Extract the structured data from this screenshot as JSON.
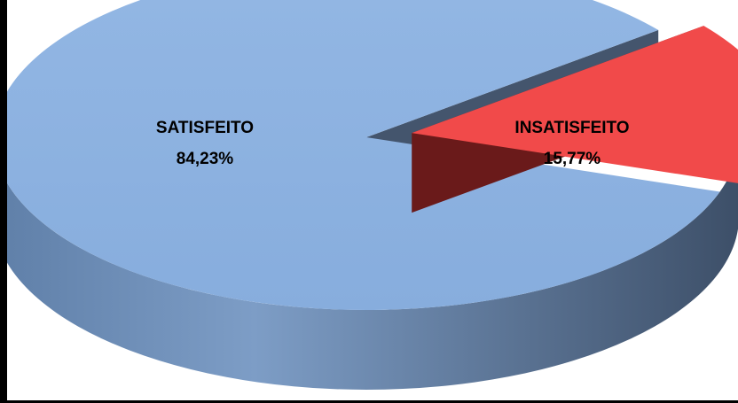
{
  "chart_data": {
    "type": "pie",
    "style": "3d-exploded",
    "categories": [
      "SATISFEITO",
      "INSATISFEITO"
    ],
    "values": [
      84.23,
      15.77
    ],
    "value_labels": [
      "84,23%",
      "15,77%"
    ],
    "colors": [
      "#8db3e2",
      "#f14a4a"
    ],
    "exploded": [
      "INSATISFEITO"
    ],
    "legend": "none"
  }
}
